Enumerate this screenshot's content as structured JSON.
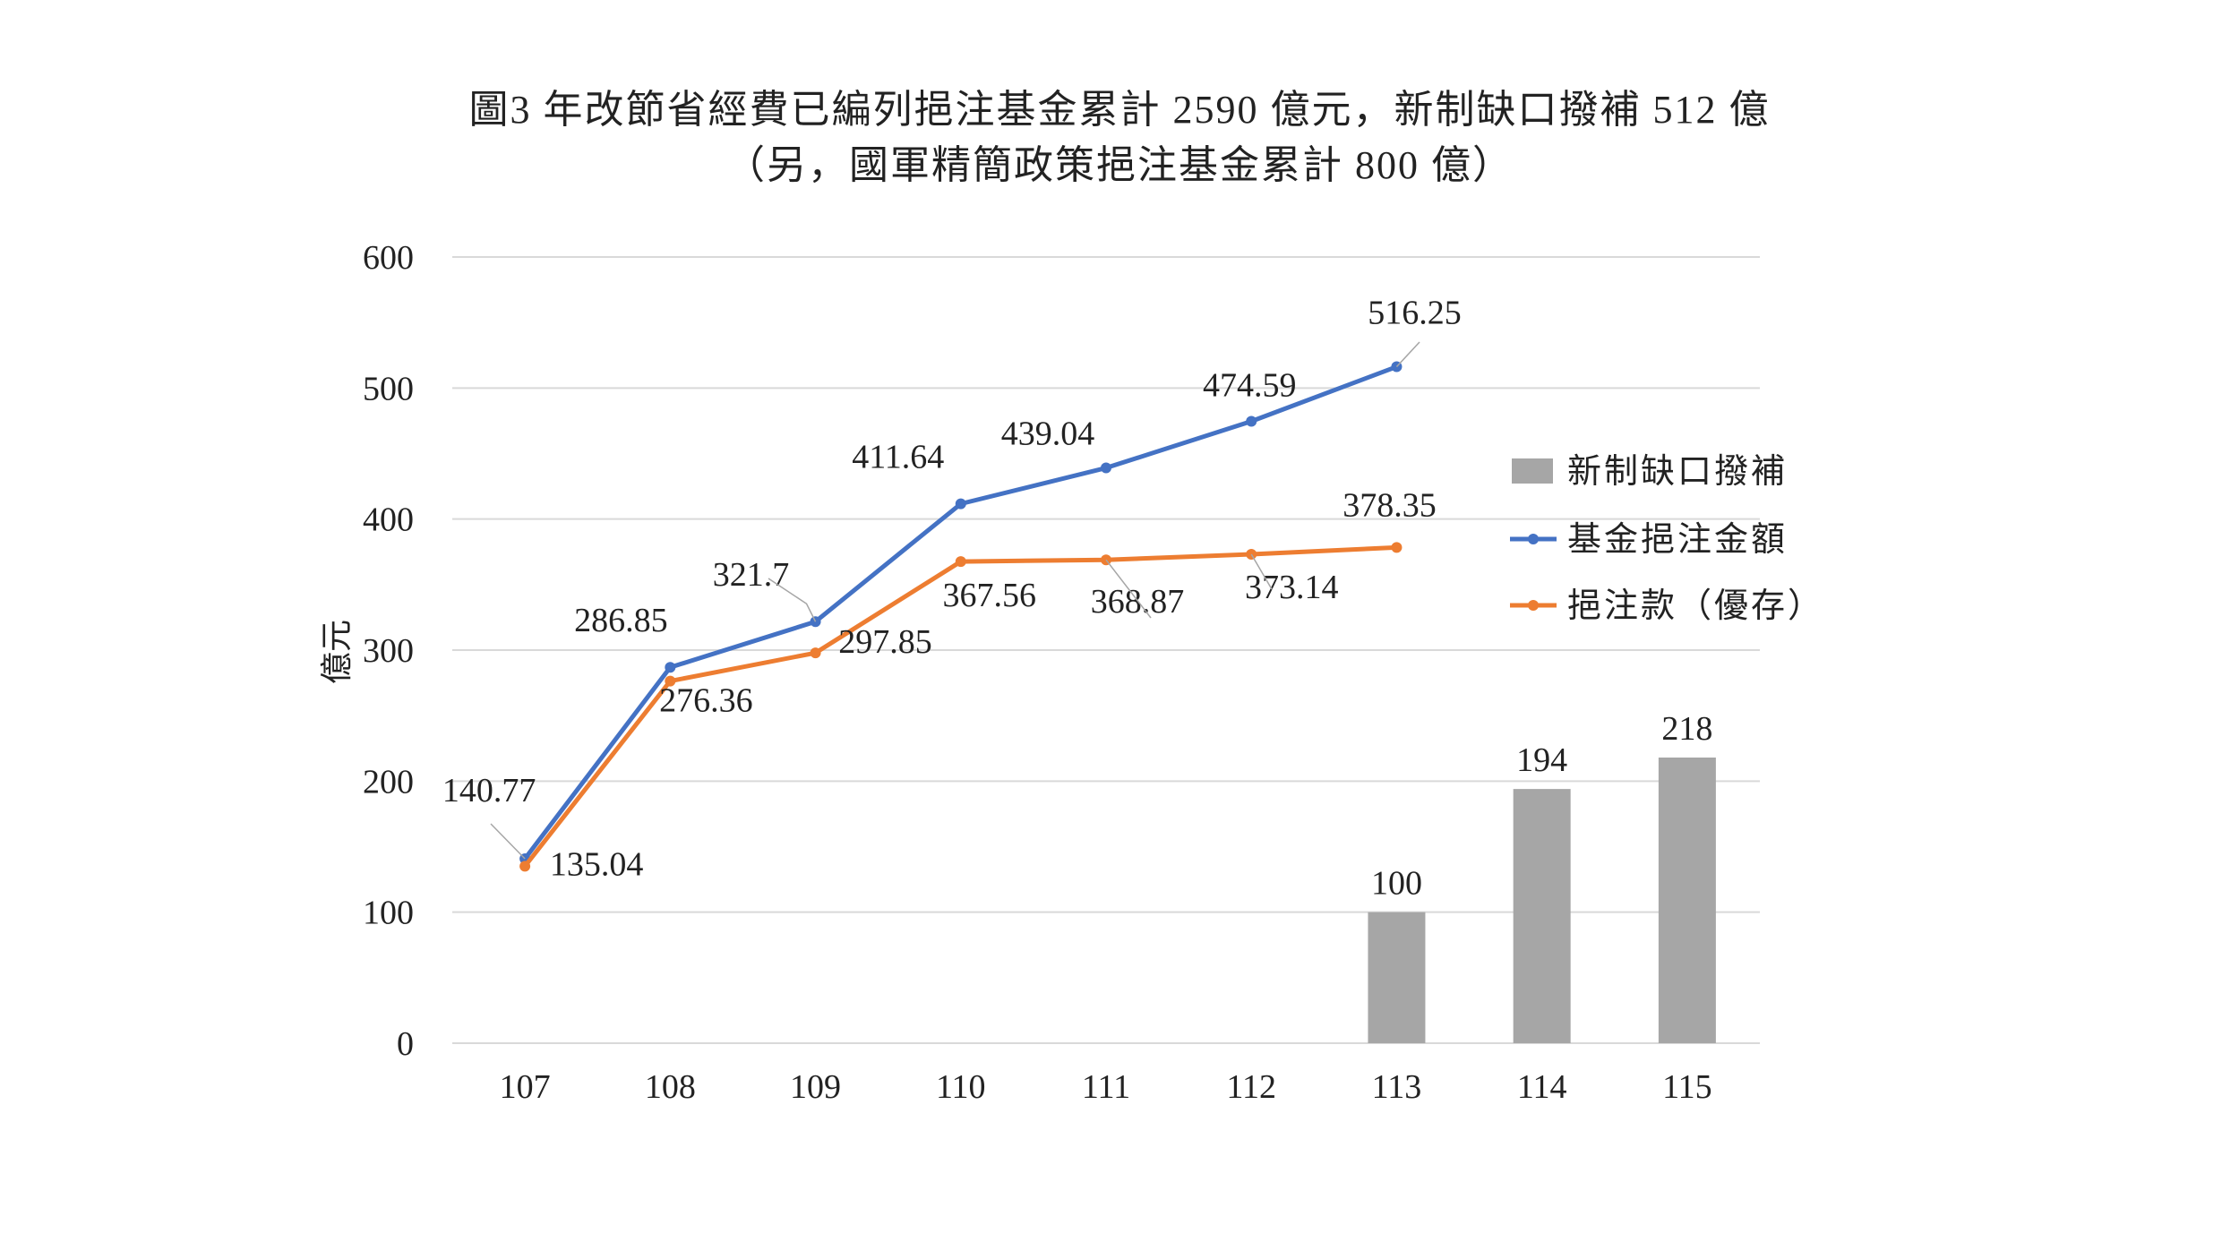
{
  "chart_data": {
    "type": "bar+line",
    "title_lines": [
      "圖3 年改節省經費已編列挹注基金累計 2590 億元，新制缺口撥補 512 億",
      "（另，國軍精簡政策挹注基金累計 800 億）"
    ],
    "ylabel": "億元",
    "xlabel": "",
    "ylim": [
      0,
      600
    ],
    "yticks": [
      0,
      100,
      200,
      300,
      400,
      500,
      600
    ],
    "categories": [
      "107",
      "108",
      "109",
      "110",
      "111",
      "112",
      "113",
      "114",
      "115"
    ],
    "series": [
      {
        "name": "新制缺口撥補",
        "kind": "bar",
        "color": "#a6a6a6",
        "values": [
          null,
          null,
          null,
          null,
          null,
          null,
          100,
          194,
          218
        ],
        "labels": [
          "",
          "",
          "",
          "",
          "",
          "",
          "100",
          "194",
          "218"
        ]
      },
      {
        "name": "基金挹注金額",
        "kind": "line",
        "color": "#4472c4",
        "values": [
          140.77,
          286.85,
          321.7,
          411.64,
          439.04,
          474.59,
          516.25,
          null,
          null
        ],
        "labels": [
          "140.77",
          "286.85",
          "321.7",
          "411.64",
          "439.04",
          "474.59",
          "516.25",
          "",
          ""
        ]
      },
      {
        "name": "挹注款（優存）",
        "kind": "line",
        "color": "#ed7d31",
        "values": [
          135.04,
          276.36,
          297.85,
          367.56,
          368.87,
          373.14,
          378.35,
          null,
          null
        ],
        "labels": [
          "135.04",
          "276.36",
          "297.85",
          "367.56",
          "368.87",
          "373.14",
          "378.35",
          "",
          ""
        ]
      }
    ],
    "legend_position": "right",
    "grid": true
  }
}
